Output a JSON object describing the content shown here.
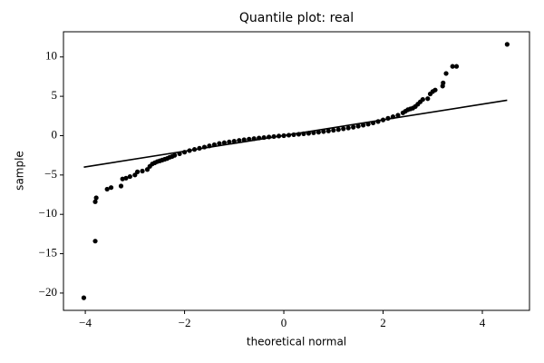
{
  "chart_data": {
    "type": "scatter",
    "title": "Quantile plot:  real",
    "xlabel": "theoretical normal",
    "ylabel": "sample",
    "xlim": [
      -4.44,
      4.95
    ],
    "ylim": [
      -22.2,
      13.2
    ],
    "xticks": [
      {
        "value": -4,
        "label": "−4"
      },
      {
        "value": -2,
        "label": "−2"
      },
      0,
      2,
      4
    ],
    "yticks": [
      {
        "value": -20,
        "label": "−20"
      },
      {
        "value": -15,
        "label": "−15"
      },
      {
        "value": -10,
        "label": "−10"
      },
      {
        "value": -5,
        "label": "−5"
      },
      0,
      5,
      10
    ],
    "color": "#000000",
    "points": {
      "x": [
        -4.03,
        -3.8,
        -3.8,
        -3.78,
        -3.56,
        -3.48,
        -3.28,
        -3.25,
        -3.18,
        -3.1,
        -3.0,
        -2.95,
        -2.85,
        -2.75,
        -2.7,
        -2.65,
        -2.6,
        -2.55,
        -2.5,
        -2.45,
        -2.4,
        -2.35,
        -2.3,
        -2.25,
        -2.2,
        -2.1,
        -2.0,
        -1.9,
        -1.8,
        -1.7,
        -1.6,
        -1.5,
        -1.4,
        -1.3,
        -1.2,
        -1.1,
        -1.0,
        -0.9,
        -0.8,
        -0.7,
        -0.6,
        -0.5,
        -0.4,
        -0.3,
        -0.2,
        -0.1,
        0.0,
        0.1,
        0.2,
        0.3,
        0.4,
        0.5,
        0.6,
        0.7,
        0.8,
        0.9,
        1.0,
        1.1,
        1.2,
        1.3,
        1.4,
        1.5,
        1.6,
        1.7,
        1.8,
        1.9,
        2.0,
        2.1,
        2.2,
        2.3,
        2.4,
        2.45,
        2.5,
        2.55,
        2.6,
        2.65,
        2.7,
        2.75,
        2.8,
        2.9,
        2.95,
        3.0,
        3.05,
        3.2,
        3.21,
        3.27,
        3.4,
        3.48,
        4.5
      ],
      "y": [
        -20.6,
        -13.4,
        -8.4,
        -7.9,
        -6.8,
        -6.6,
        -6.4,
        -5.5,
        -5.4,
        -5.2,
        -5.0,
        -4.6,
        -4.5,
        -4.3,
        -3.9,
        -3.6,
        -3.45,
        -3.3,
        -3.2,
        -3.1,
        -3.0,
        -2.9,
        -2.75,
        -2.65,
        -2.5,
        -2.3,
        -2.1,
        -1.9,
        -1.75,
        -1.6,
        -1.45,
        -1.3,
        -1.15,
        -1.0,
        -0.9,
        -0.8,
        -0.7,
        -0.6,
        -0.52,
        -0.45,
        -0.38,
        -0.3,
        -0.24,
        -0.17,
        -0.11,
        -0.05,
        0.0,
        0.06,
        0.12,
        0.18,
        0.24,
        0.3,
        0.37,
        0.44,
        0.52,
        0.6,
        0.68,
        0.77,
        0.87,
        0.97,
        1.08,
        1.2,
        1.33,
        1.47,
        1.62,
        1.8,
        2.0,
        2.2,
        2.4,
        2.6,
        2.9,
        3.1,
        3.3,
        3.4,
        3.5,
        3.7,
        4.0,
        4.3,
        4.6,
        4.7,
        5.3,
        5.6,
        5.8,
        6.3,
        6.7,
        7.9,
        8.8,
        8.8,
        11.6
      ]
    },
    "fit_line": {
      "x": [
        -4.03,
        4.5
      ],
      "y": [
        -4.0,
        4.5
      ]
    }
  }
}
